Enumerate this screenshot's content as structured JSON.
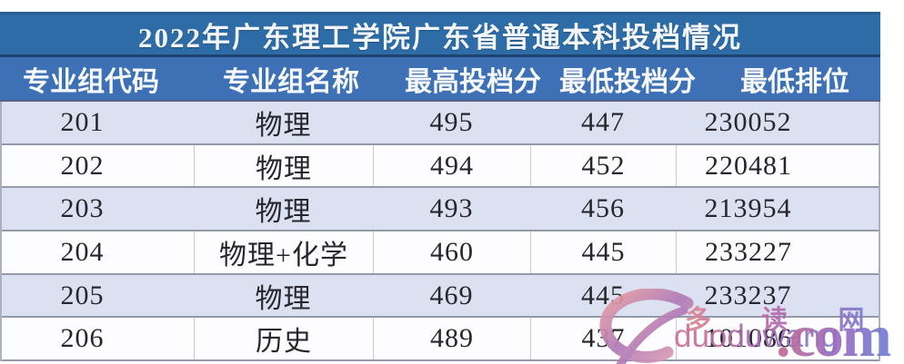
{
  "table": {
    "title": "2022年广东理工学院广东省普通本科投档情况",
    "columns": [
      "专业组代码",
      "专业组名称",
      "最高投档分",
      "最低投档分",
      "最低排位"
    ],
    "rows": [
      {
        "code": "201",
        "group": "物理",
        "max": "495",
        "min": "447",
        "rank": "230052"
      },
      {
        "code": "202",
        "group": "物理",
        "max": "494",
        "min": "452",
        "rank": "220481"
      },
      {
        "code": "203",
        "group": "物理",
        "max": "493",
        "min": "456",
        "rank": "213954"
      },
      {
        "code": "204",
        "group": "物理+化学",
        "max": "460",
        "min": "445",
        "rank": "233227"
      },
      {
        "code": "205",
        "group": "物理",
        "max": "469",
        "min": "445",
        "rank": "233237"
      },
      {
        "code": "206",
        "group": "历史",
        "max": "489",
        "min": "437",
        "rank": "101086"
      }
    ],
    "colors": {
      "title_bar": "#2d6ca7",
      "header_bar": "#3d70b4",
      "row_alt": "#dbe1f1",
      "row_white": "#fdfdff",
      "row_border": "#9299aa",
      "text": "#26262c",
      "watermark_pink": "#e08a92",
      "watermark_purple": "#9a6cc0",
      "watermark_blue": "#6f83d6"
    }
  },
  "watermark": {
    "logo": "swirl-ribbon-logo",
    "site_name": "多 读 网",
    "site_latin": "duoduwang",
    "domain_suffix": ".com"
  },
  "chart_data": {
    "type": "table",
    "title": "2022年广东理工学院广东省普通本科投档情况",
    "columns": [
      "专业组代码",
      "专业组名称",
      "最高投档分",
      "最低投档分",
      "最低排位"
    ],
    "rows": [
      [
        "201",
        "物理",
        495,
        447,
        230052
      ],
      [
        "202",
        "物理",
        494,
        452,
        220481
      ],
      [
        "203",
        "物理",
        493,
        456,
        213954
      ],
      [
        "204",
        "物理+化学",
        460,
        445,
        233227
      ],
      [
        "205",
        "物理",
        469,
        445,
        233237
      ],
      [
        "206",
        "历史",
        489,
        437,
        101086
      ]
    ]
  }
}
